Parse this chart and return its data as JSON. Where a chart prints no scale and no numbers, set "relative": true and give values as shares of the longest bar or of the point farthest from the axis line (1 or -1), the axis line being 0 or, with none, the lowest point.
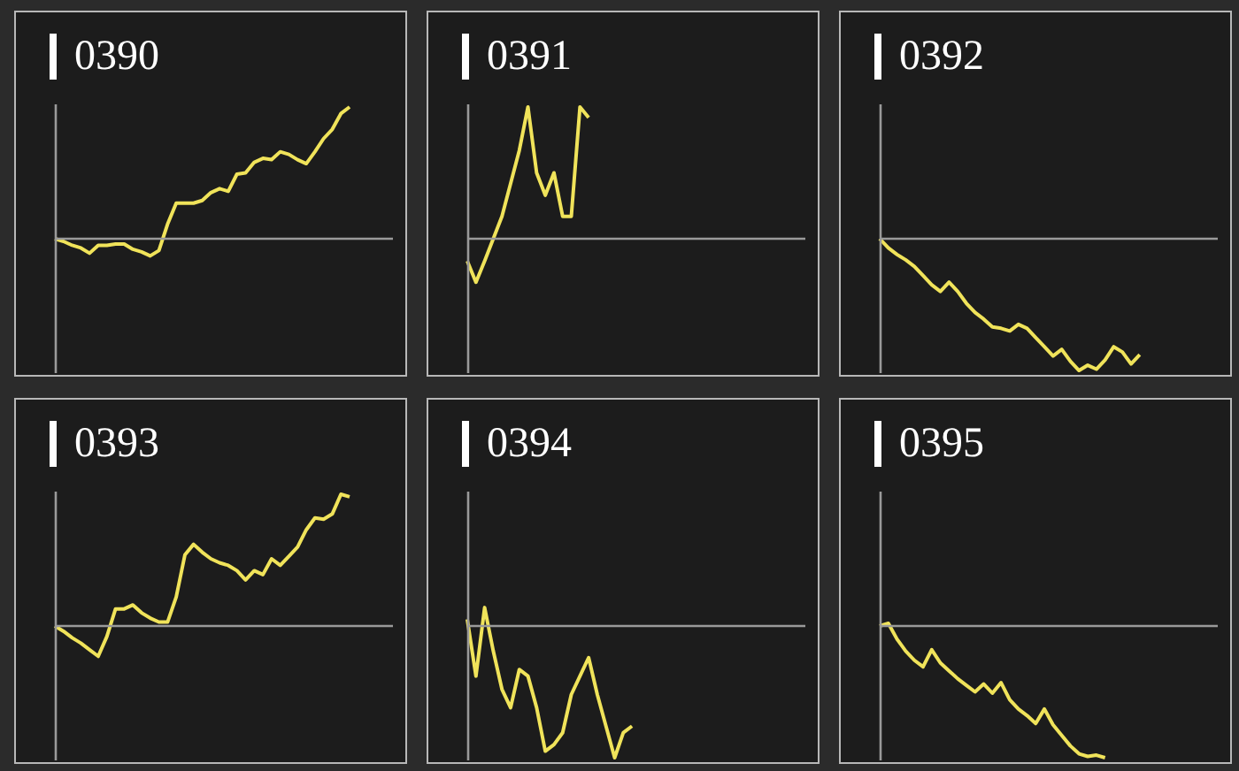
{
  "chart_data": [
    {
      "type": "line",
      "title": "0390",
      "relative": true,
      "color": "#f0e35a",
      "categories": [
        null,
        null,
        null,
        null,
        null,
        null,
        null,
        null,
        null,
        null,
        null,
        null,
        null,
        null,
        null,
        null,
        null,
        null,
        null,
        null,
        null,
        null,
        null,
        null,
        null,
        null,
        null,
        null,
        null,
        null,
        null,
        null,
        null,
        null,
        null,
        null,
        null,
        null,
        null,
        null
      ],
      "values": [
        0,
        -0.02,
        -0.05,
        -0.07,
        -0.11,
        -0.05,
        -0.05,
        -0.04,
        -0.04,
        -0.08,
        -0.1,
        -0.13,
        -0.09,
        0.11,
        0.27,
        0.27,
        0.27,
        0.29,
        0.35,
        0.38,
        0.36,
        0.49,
        0.5,
        0.58,
        0.61,
        0.6,
        0.66,
        0.64,
        0.6,
        0.57,
        0.66,
        0.76,
        0.83,
        0.95,
        1,
        null,
        null,
        null,
        null,
        null
      ]
    },
    {
      "type": "line",
      "title": "0391",
      "relative": true,
      "color": "#f0e35a",
      "categories": [
        null,
        null,
        null,
        null,
        null,
        null,
        null,
        null,
        null,
        null,
        null,
        null,
        null,
        null,
        null,
        null,
        null,
        null,
        null,
        null,
        null,
        null,
        null,
        null,
        null,
        null,
        null,
        null,
        null,
        null,
        null,
        null,
        null,
        null,
        null,
        null,
        null,
        null,
        null,
        null
      ],
      "values": [
        -0.17,
        -0.33,
        -0.17,
        0,
        0.17,
        0.42,
        0.67,
        1,
        0.5,
        0.33,
        0.5,
        0.17,
        0.17,
        1,
        0.92,
        null,
        null,
        null,
        null,
        null,
        null,
        null,
        null,
        null,
        null,
        null,
        null,
        null,
        null,
        null,
        null,
        null,
        null,
        null,
        null,
        null,
        null,
        null,
        null,
        null
      ]
    },
    {
      "type": "line",
      "title": "0392",
      "relative": true,
      "color": "#f0e35a",
      "categories": [
        null,
        null,
        null,
        null,
        null,
        null,
        null,
        null,
        null,
        null,
        null,
        null,
        null,
        null,
        null,
        null,
        null,
        null,
        null,
        null,
        null,
        null,
        null,
        null,
        null,
        null,
        null,
        null,
        null,
        null,
        null,
        null,
        null,
        null,
        null,
        null,
        null,
        null,
        null,
        null
      ],
      "values": [
        0,
        -0.07,
        -0.12,
        -0.16,
        -0.21,
        -0.28,
        -0.35,
        -0.4,
        -0.33,
        -0.4,
        -0.49,
        -0.56,
        -0.61,
        -0.67,
        -0.68,
        -0.7,
        -0.65,
        -0.68,
        -0.75,
        -0.82,
        -0.89,
        -0.84,
        -0.93,
        -1,
        -0.96,
        -0.99,
        -0.92,
        -0.82,
        -0.86,
        -0.95,
        -0.88,
        null,
        null,
        null,
        null,
        null,
        null,
        null,
        null,
        null
      ]
    },
    {
      "type": "line",
      "title": "0393",
      "relative": true,
      "color": "#f0e35a",
      "categories": [
        null,
        null,
        null,
        null,
        null,
        null,
        null,
        null,
        null,
        null,
        null,
        null,
        null,
        null,
        null,
        null,
        null,
        null,
        null,
        null,
        null,
        null,
        null,
        null,
        null,
        null,
        null,
        null,
        null,
        null,
        null,
        null,
        null,
        null,
        null,
        null,
        null,
        null,
        null,
        null
      ],
      "values": [
        0,
        -0.04,
        -0.09,
        -0.13,
        -0.18,
        -0.23,
        -0.08,
        0.13,
        0.13,
        0.16,
        0.1,
        0.06,
        0.03,
        0.03,
        0.22,
        0.54,
        0.62,
        0.56,
        0.51,
        0.48,
        0.46,
        0.42,
        0.35,
        0.42,
        0.39,
        0.51,
        0.46,
        0.53,
        0.6,
        0.73,
        0.82,
        0.81,
        0.85,
        1,
        0.98,
        null,
        null,
        null,
        null,
        null
      ]
    },
    {
      "type": "line",
      "title": "0394",
      "relative": true,
      "color": "#f0e35a",
      "categories": [
        null,
        null,
        null,
        null,
        null,
        null,
        null,
        null,
        null,
        null,
        null,
        null,
        null,
        null,
        null,
        null,
        null,
        null,
        null,
        null,
        null,
        null,
        null,
        null,
        null,
        null,
        null,
        null,
        null,
        null,
        null,
        null,
        null,
        null,
        null,
        null,
        null,
        null,
        null,
        null
      ],
      "values": [
        0.05,
        -0.38,
        0.14,
        -0.19,
        -0.48,
        -0.62,
        -0.33,
        -0.38,
        -0.62,
        -0.95,
        -0.9,
        -0.81,
        -0.52,
        -0.38,
        -0.24,
        -0.52,
        -0.76,
        -1,
        -0.81,
        -0.76,
        null,
        null,
        null,
        null,
        null,
        null,
        null,
        null,
        null,
        null,
        null,
        null,
        null,
        null,
        null,
        null,
        null,
        null,
        null,
        null
      ]
    },
    {
      "type": "line",
      "title": "0395",
      "relative": true,
      "color": "#f0e35a",
      "categories": [
        null,
        null,
        null,
        null,
        null,
        null,
        null,
        null,
        null,
        null,
        null,
        null,
        null,
        null,
        null,
        null,
        null,
        null,
        null,
        null,
        null,
        null,
        null,
        null,
        null,
        null,
        null,
        null,
        null,
        null,
        null,
        null,
        null,
        null,
        null,
        null,
        null,
        null,
        null,
        null
      ],
      "values": [
        0,
        0.02,
        -0.1,
        -0.19,
        -0.26,
        -0.31,
        -0.18,
        -0.28,
        -0.34,
        -0.4,
        -0.45,
        -0.5,
        -0.44,
        -0.51,
        -0.43,
        -0.56,
        -0.63,
        -0.68,
        -0.74,
        -0.63,
        -0.75,
        -0.83,
        -0.91,
        -0.97,
        -0.99,
        -0.98,
        -1,
        null,
        null,
        null,
        null,
        null,
        null,
        null,
        null,
        null,
        null,
        null,
        null,
        null
      ]
    }
  ]
}
